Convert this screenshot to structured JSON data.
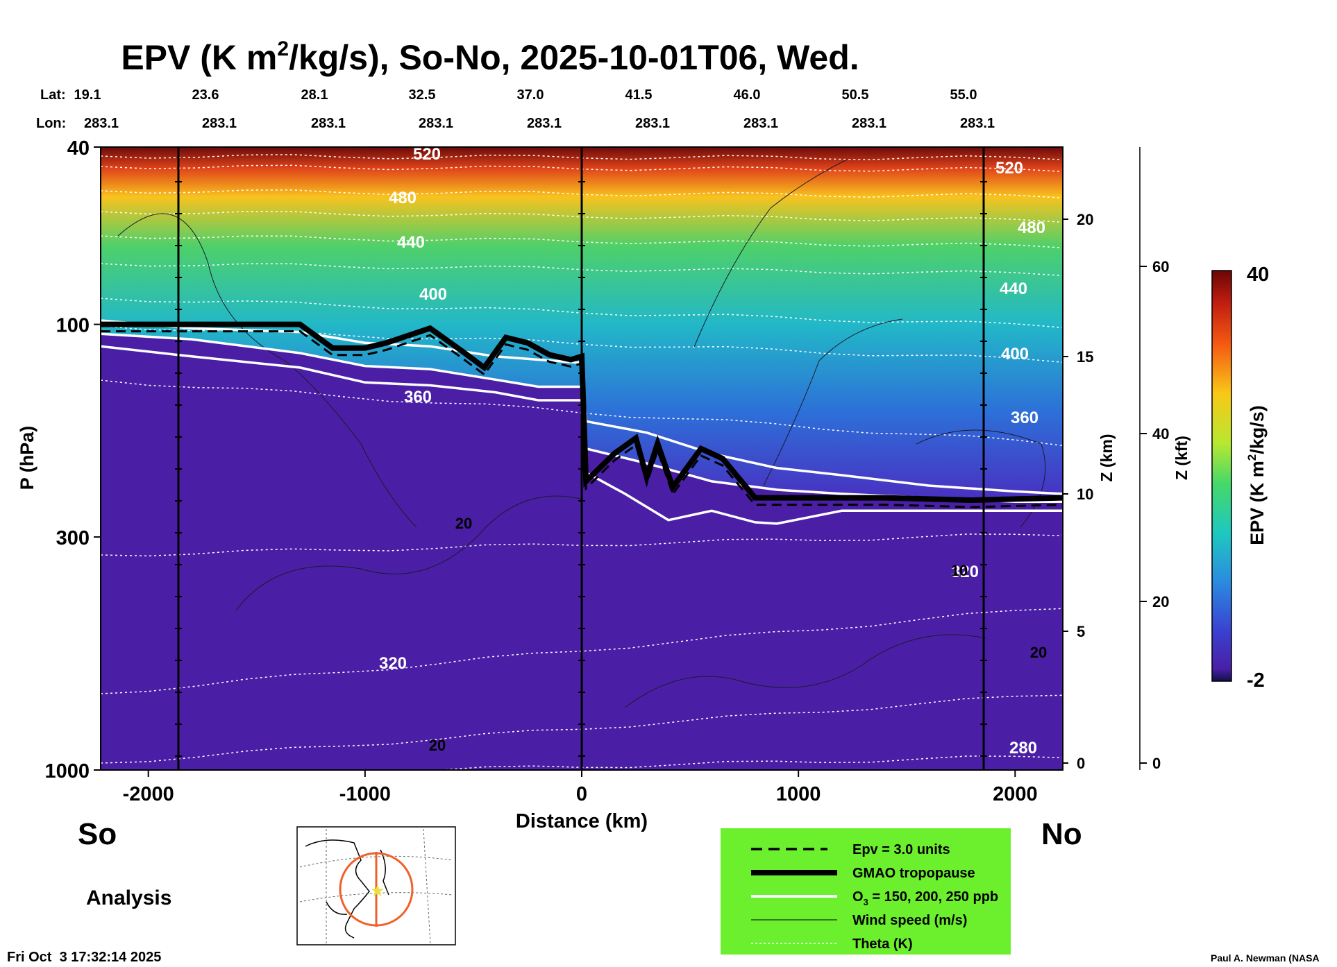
{
  "title": {
    "main": "EPV (K m",
    "sup": "2",
    "rest": "/kg/s), So-No, 2025-10-01T06, Wed."
  },
  "lat_label": "Lat:",
  "lon_label": "Lon:",
  "lat_values": [
    "19.1",
    "23.6",
    "28.1",
    "32.5",
    "37.0",
    "41.5",
    "46.0",
    "50.5",
    "55.0"
  ],
  "lon_values": [
    "283.1",
    "283.1",
    "283.1",
    "283.1",
    "283.1",
    "283.1",
    "283.1",
    "283.1",
    "283.1"
  ],
  "colorbar": {
    "label_main": "EPV (K m",
    "label_sup": "2",
    "label_rest": "/kg/s)",
    "max_label": "40",
    "min_label": "-2"
  },
  "side_labels": {
    "left": "So",
    "right": "No",
    "analysis": "Analysis"
  },
  "legend": [
    {
      "style": "dashed",
      "label": "Epv = 3.0 units"
    },
    {
      "style": "thick",
      "label": "GMAO tropopause"
    },
    {
      "style": "white",
      "label_main": "O",
      "label_sub": "3",
      "label_rest": " = 150, 200, 250 ppb"
    },
    {
      "style": "thin",
      "label": "Wind speed (m/s)"
    },
    {
      "style": "dotted",
      "label": "Theta (K)"
    }
  ],
  "timestamp": "Fri Oct  3 17:32:14 2025",
  "credit": "Paul A. Newman (NASA",
  "colors": {
    "legend_bg": "#6cf02e",
    "background_field": "#4a1fa6"
  },
  "chart_data": {
    "type": "heatmap",
    "xlabel": "Distance (km)",
    "ylabel": "P (hPa)",
    "z_label": "Z (km)",
    "kft_label": "Z (kft)",
    "xlim": [
      -2220,
      2220
    ],
    "x_ticks": [
      "-2000",
      "-1000",
      "0",
      "1000",
      "2000"
    ],
    "y_ticks": [
      "40",
      "100",
      "300",
      "1000"
    ],
    "y_scale": "log",
    "ylim": [
      1000,
      40
    ],
    "z_ticks": [
      "0",
      "5",
      "10",
      "15",
      "20"
    ],
    "kft_ticks": [
      "0",
      "20",
      "40",
      "60"
    ],
    "colorbar_range": [
      -2,
      40
    ],
    "theta_labels": [
      "520",
      "480",
      "440",
      "400",
      "360",
      "520",
      "480",
      "440",
      "400",
      "360",
      "320",
      "320",
      "280"
    ],
    "wind_labels": [
      "20",
      "20",
      "20",
      "10"
    ],
    "tropopause": {
      "x": [
        -2220,
        -1300,
        -1150,
        -1000,
        -900,
        -700,
        -550,
        -450,
        -350,
        -250,
        -150,
        -50,
        0,
        20,
        150,
        250,
        300,
        350,
        420,
        550,
        650,
        800,
        1000,
        1400,
        1800,
        2220
      ],
      "p": [
        100,
        100,
        113,
        113,
        110,
        102,
        115,
        125,
        107,
        110,
        117,
        120,
        118,
        225,
        195,
        180,
        220,
        185,
        232,
        190,
        200,
        245,
        245,
        245,
        248,
        245
      ]
    },
    "ozone_150": {
      "x": [
        -2220,
        -1800,
        -1300,
        -1000,
        -700,
        -400,
        -200,
        0,
        20,
        300,
        600,
        900,
        1200,
        1600,
        2000,
        2220
      ],
      "p": [
        98,
        102,
        104,
        110,
        112,
        118,
        120,
        122,
        165,
        175,
        195,
        210,
        218,
        230,
        237,
        240
      ]
    },
    "ozone_200": {
      "x": [
        -2220,
        -1800,
        -1300,
        -1000,
        -700,
        -400,
        -200,
        0,
        20,
        300,
        600,
        900,
        1200,
        1600,
        2000,
        2220
      ],
      "p": [
        105,
        108,
        116,
        124,
        126,
        133,
        138,
        138,
        190,
        205,
        225,
        235,
        240,
        245,
        250,
        250
      ]
    },
    "ozone_250": {
      "x": [
        -2220,
        -1800,
        -1300,
        -1000,
        -700,
        -400,
        -200,
        0,
        20,
        200,
        400,
        600,
        800,
        900,
        1200,
        1600,
        2000,
        2220
      ],
      "p": [
        112,
        118,
        125,
        135,
        137,
        142,
        148,
        148,
        215,
        240,
        275,
        262,
        278,
        280,
        262,
        262,
        262,
        262
      ]
    }
  }
}
